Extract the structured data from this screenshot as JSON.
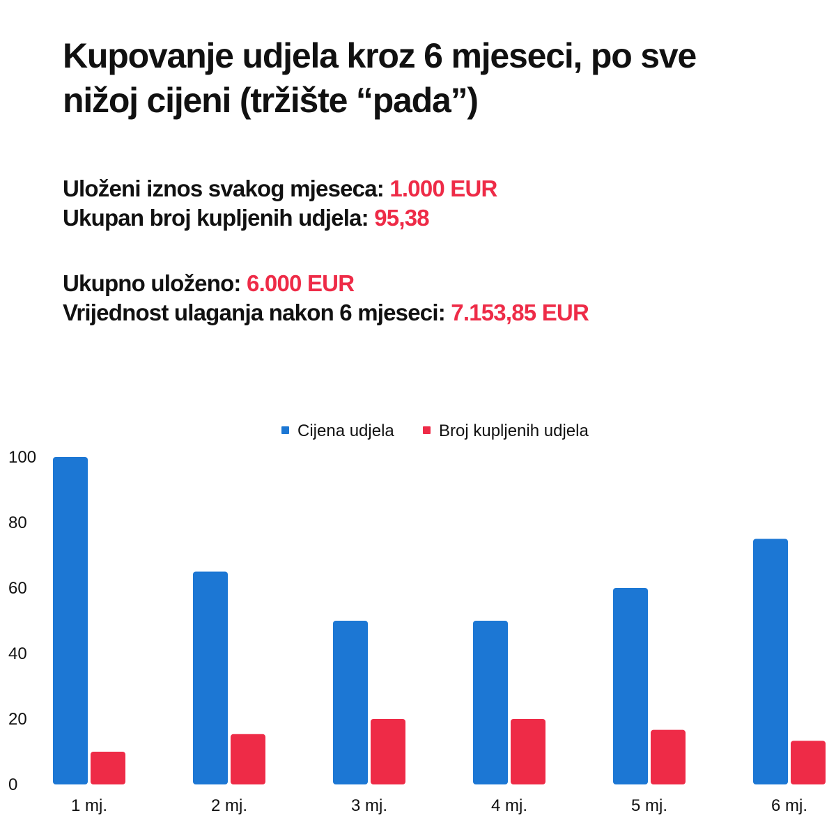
{
  "header": {
    "title": "Kupovanje udjela kroz 6 mjeseci, po sve nižoj cijeni (tržište “pada”)"
  },
  "stats": {
    "monthly_amount_label": "Uloženi iznos svakog mjeseca:",
    "monthly_amount_value": "1.000 EUR",
    "total_units_label": "Ukupan broj kupljenih udjela:",
    "total_units_value": "95,38",
    "total_invested_label": "Ukupno uloženo:",
    "total_invested_value": "6.000 EUR",
    "final_value_label": "Vrijednost ulaganja nakon 6 mjeseci:",
    "final_value_value": "7.153,85 EUR"
  },
  "colors": {
    "price": "#1c77d4",
    "units": "#ee2b47",
    "highlight": "#ee2b47"
  },
  "chart_data": {
    "type": "bar",
    "categories": [
      "1 mj.",
      "2 mj.",
      "3 mj.",
      "4 mj.",
      "5 mj.",
      "6 mj."
    ],
    "series": [
      {
        "name": "Cijena udjela",
        "values": [
          100,
          65,
          50,
          50,
          60,
          75
        ]
      },
      {
        "name": "Broj kupljenih udjela",
        "values": [
          10,
          15.38,
          20,
          20,
          16.67,
          13.33
        ]
      }
    ],
    "y_ticks": [
      0,
      20,
      40,
      60,
      80,
      100
    ],
    "ylim": [
      0,
      100
    ],
    "legend_position": "top-center",
    "grid": false,
    "title": "",
    "xlabel": "",
    "ylabel": ""
  }
}
